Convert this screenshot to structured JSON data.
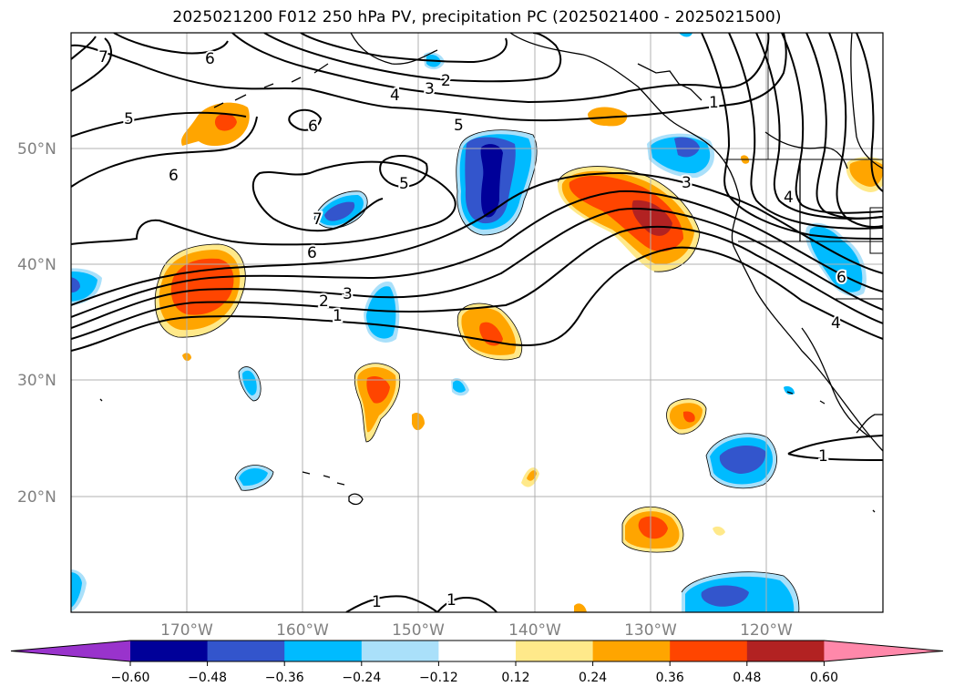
{
  "title": "2025021200 F012 250 hPa PV, precipitation PC (2025021400 - 2025021500)",
  "map": {
    "lat_labels": [
      "50°N",
      "40°N",
      "30°N",
      "20°N"
    ],
    "lon_labels": [
      "170°W",
      "160°W",
      "150°W",
      "140°W",
      "130°W",
      "120°W"
    ],
    "pv_contour_labels": [
      {
        "id": "pv-1a",
        "text": "1"
      },
      {
        "id": "pv-1b",
        "text": "1"
      },
      {
        "id": "pv-1c",
        "text": "1"
      },
      {
        "id": "pv-1d",
        "text": "1"
      },
      {
        "id": "pv-1e",
        "text": "1"
      },
      {
        "id": "pv-2a",
        "text": "2"
      },
      {
        "id": "pv-2b",
        "text": "2"
      },
      {
        "id": "pv-3a",
        "text": "3"
      },
      {
        "id": "pv-3b",
        "text": "3"
      },
      {
        "id": "pv-3c",
        "text": "3"
      },
      {
        "id": "pv-4a",
        "text": "4"
      },
      {
        "id": "pv-4b",
        "text": "4"
      },
      {
        "id": "pv-4c",
        "text": "4"
      },
      {
        "id": "pv-5a",
        "text": "5"
      },
      {
        "id": "pv-5b",
        "text": "5"
      },
      {
        "id": "pv-5c",
        "text": "5"
      },
      {
        "id": "pv-6a",
        "text": "6"
      },
      {
        "id": "pv-6b",
        "text": "6"
      },
      {
        "id": "pv-6c",
        "text": "6"
      },
      {
        "id": "pv-6d",
        "text": "6"
      },
      {
        "id": "pv-6e",
        "text": "6"
      },
      {
        "id": "pv-7a",
        "text": "7"
      },
      {
        "id": "pv-7b",
        "text": "7"
      }
    ]
  },
  "colorbar": {
    "colors": [
      "#9933cc",
      "#000099",
      "#3355cc",
      "#00bbff",
      "#aae0fa",
      "#ffffff",
      "#ffe98a",
      "#ffa500",
      "#ff4500",
      "#b22222",
      "#ff88aa"
    ],
    "tick_labels": [
      "−0.60",
      "−0.48",
      "−0.36",
      "−0.24",
      "−0.12",
      "0.12",
      "0.24",
      "0.36",
      "0.48",
      "0.60"
    ]
  }
}
